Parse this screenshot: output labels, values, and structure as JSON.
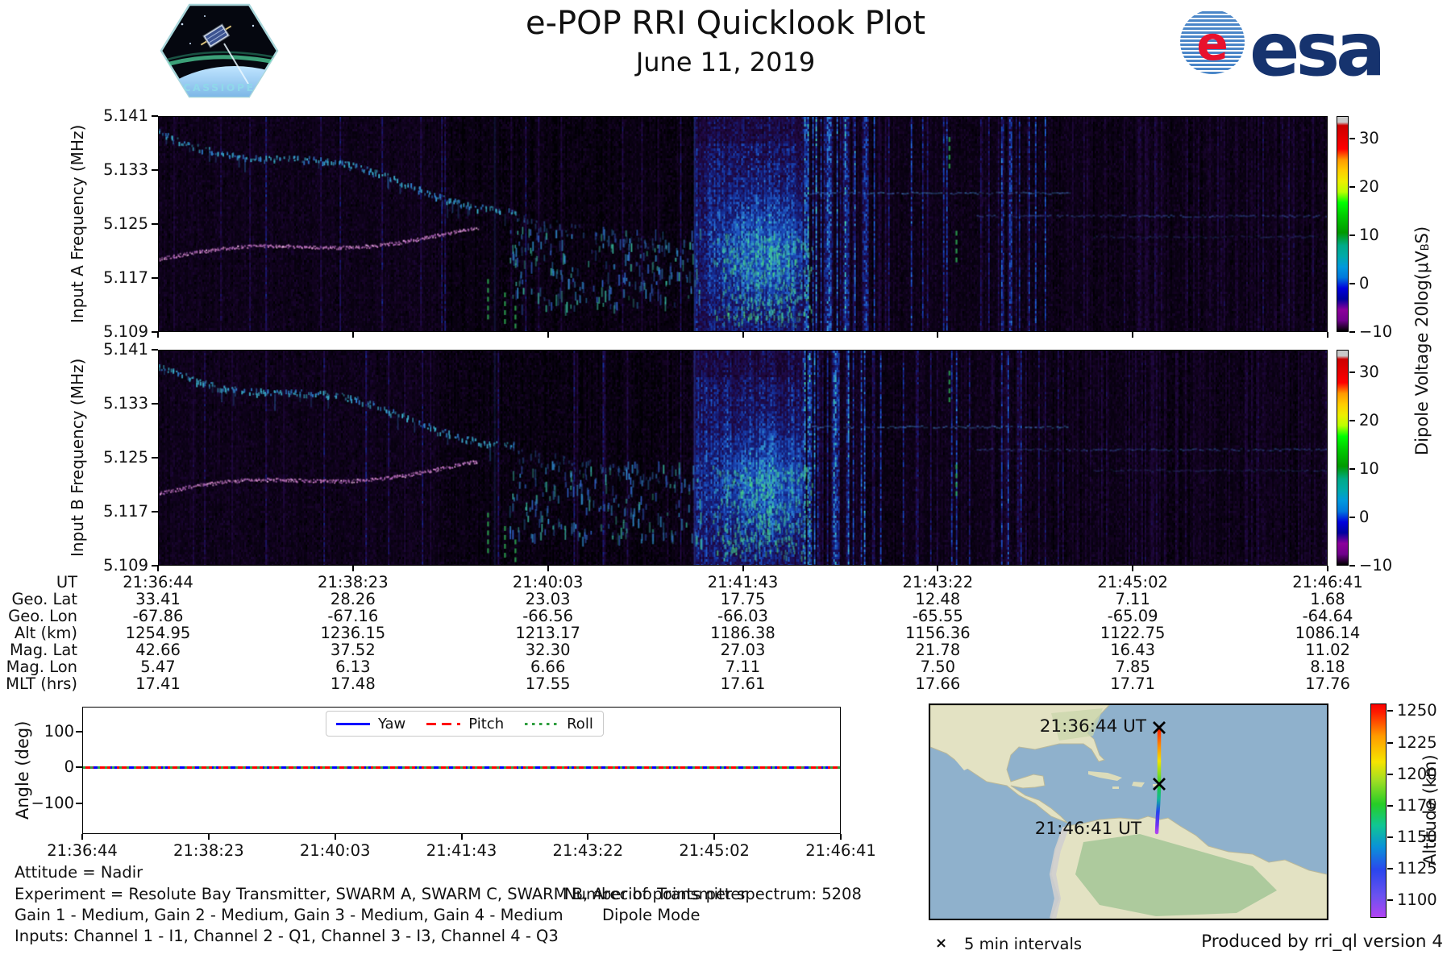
{
  "header": {
    "title": "e-POP RRI Quicklook Plot",
    "date": "June 11, 2019",
    "cassiope_label": "CASSIOPE",
    "esa_text": "esa"
  },
  "spectrograms": {
    "panels": [
      {
        "ylabel": "Input A Frequency (MHz)"
      },
      {
        "ylabel": "Input B Frequency (MHz)"
      }
    ],
    "ytick_labels": [
      "5.141",
      "5.133",
      "5.125",
      "5.117",
      "5.109"
    ],
    "colorbar": {
      "label_prefix": "Dipole Voltage 20log(μV",
      "label_sub": "B",
      "label_suffix": "S)",
      "tick_labels": [
        "30",
        "20",
        "10",
        "0",
        "−10"
      ],
      "colormap": "nipy_spectral"
    }
  },
  "angle_plot": {
    "ylabel": "Angle (deg)",
    "ytick_labels": [
      "100",
      "0",
      "−100"
    ],
    "xtick_labels": [
      "21:36:44",
      "21:38:23",
      "21:40:03",
      "21:41:43",
      "21:43:22",
      "21:45:02",
      "21:46:41"
    ]
  },
  "notes": {
    "attitude": "Attitude = Nadir",
    "experiment": "Experiment = Resolute Bay Transmitter, SWARM A, SWARM C, SWARM B, Arecibo Transmitter",
    "points": "Number of points per spectrum: 5208",
    "gain": "Gain 1 - Medium, Gain 2 - Medium, Gain 3 - Medium, Gain 4 - Medium",
    "mode": "Dipole Mode",
    "inputs": "Inputs: Channel 1 - I1, Channel 2 - Q1, Channel 3 - I3, Channel 4 - Q3"
  },
  "map_panel": {
    "start_label": "21:36:44 UT",
    "end_label": "21:46:41 UT",
    "interval_marker": "×",
    "interval_label": "5 min intervals",
    "colorbar": {
      "label": "Altitude (km)",
      "tick_labels": [
        "1250",
        "1225",
        "1200",
        "1175",
        "1150",
        "1125",
        "1100"
      ],
      "colormap": "rainbow"
    }
  },
  "footer": {
    "produced_by": "Produced by rri_ql version 4"
  },
  "colors": {
    "yaw": "#0000ff",
    "pitch": "#ff0000",
    "roll": "#2e9e3e",
    "esa_navy": "#16336e",
    "esa_red": "#e8112d",
    "ocean": "#8fb1cc",
    "land": "#e3e2c3",
    "forest": "#a3c596"
  },
  "chart_data": [
    {
      "type": "heatmap",
      "name": "rri-spectrogram-input-a",
      "ylabel": "Input A Frequency (MHz)",
      "ylim": [
        5.109,
        5.141
      ],
      "yticks": [
        5.141,
        5.133,
        5.125,
        5.117,
        5.109
      ],
      "xticks_ut": [
        "21:36:44",
        "21:38:23",
        "21:40:03",
        "21:41:43",
        "21:43:22",
        "21:45:02",
        "21:46:41"
      ],
      "colorbar": {
        "label": "Dipole Voltage 20log(μV_BS)",
        "ticks": [
          30,
          20,
          10,
          0,
          -10
        ],
        "range": [
          -10,
          34.7
        ],
        "colormap": "nipy_spectral"
      },
      "features": [
        "descending cyan scatter trace from ~5.139 MHz at 21:36:44 to ~5.127 MHz near 21:39",
        "narrow pink/magenta tone rising 5.120→5.124 MHz from 21:36:44 until ~21:39:30",
        "green dashed drop toward ~5.110 MHz near 21:39:40",
        "scattered blue emission 5.113–5.125 MHz between ~21:39:40 and ~21:41:00",
        "broadband blue wash with bright turquoise patch ~21:41:05–21:42:00",
        "strong vertical striping band ~21:42:00–21:42:30",
        "sparse vertical striations and faint horizontal tones near 5.130 and 5.126 MHz after 21:42:30"
      ]
    },
    {
      "type": "heatmap",
      "name": "rri-spectrogram-input-b",
      "ylabel": "Input B Frequency (MHz)",
      "ylim": [
        5.109,
        5.141
      ],
      "yticks": [
        5.141,
        5.133,
        5.125,
        5.117,
        5.109
      ],
      "xticks_ut": [
        "21:36:44",
        "21:38:23",
        "21:40:03",
        "21:41:43",
        "21:43:22",
        "21:45:02",
        "21:46:41"
      ],
      "colorbar": {
        "label": "Dipole Voltage 20log(μV_BS)",
        "ticks": [
          30,
          20,
          10,
          0,
          -10
        ],
        "range": [
          -10,
          34.7
        ],
        "colormap": "nipy_spectral"
      },
      "note": "nearly identical structure to Input A"
    },
    {
      "type": "table",
      "name": "ephemeris",
      "rows": [
        {
          "label": "UT",
          "values": [
            "21:36:44",
            "21:38:23",
            "21:40:03",
            "21:41:43",
            "21:43:22",
            "21:45:02",
            "21:46:41"
          ]
        },
        {
          "label": "Geo. Lat",
          "values": [
            "33.41",
            "28.26",
            "23.03",
            "17.75",
            "12.48",
            "7.11",
            "1.68"
          ]
        },
        {
          "label": "Geo. Lon",
          "values": [
            "-67.86",
            "-67.16",
            "-66.56",
            "-66.03",
            "-65.55",
            "-65.09",
            "-64.64"
          ]
        },
        {
          "label": "Alt (km)",
          "values": [
            "1254.95",
            "1236.15",
            "1213.17",
            "1186.38",
            "1156.36",
            "1122.75",
            "1086.14"
          ]
        },
        {
          "label": "Mag. Lat",
          "values": [
            "42.66",
            "37.52",
            "32.30",
            "27.03",
            "21.78",
            "16.43",
            "11.02"
          ]
        },
        {
          "label": "Mag. Lon",
          "values": [
            "5.47",
            "6.13",
            "6.66",
            "7.11",
            "7.50",
            "7.85",
            "8.18"
          ]
        },
        {
          "label": "MLT (hrs)",
          "values": [
            "17.41",
            "17.48",
            "17.55",
            "17.61",
            "17.66",
            "17.71",
            "17.76"
          ]
        }
      ]
    },
    {
      "type": "line",
      "name": "attitude-angles",
      "ylabel": "Angle (deg)",
      "yticks": [
        100,
        0,
        -100
      ],
      "ylim": [
        -185,
        160
      ],
      "x": [
        "21:36:44",
        "21:38:23",
        "21:40:03",
        "21:41:43",
        "21:43:22",
        "21:45:02",
        "21:46:41"
      ],
      "series": [
        {
          "name": "Yaw",
          "style": "solid",
          "color": "#0000ff",
          "values": [
            0,
            0,
            0,
            0,
            0,
            0,
            0
          ]
        },
        {
          "name": "Pitch",
          "style": "dashed",
          "color": "#ff0000",
          "values": [
            0,
            0,
            0,
            0,
            0,
            0,
            0
          ]
        },
        {
          "name": "Roll",
          "style": "dotted",
          "color": "#2e9e3e",
          "values": [
            0,
            0,
            0,
            0,
            0,
            0,
            0
          ]
        }
      ],
      "legend_position": "upper center"
    },
    {
      "type": "scatter",
      "name": "ground-track-map",
      "track_start": {
        "label": "21:36:44 UT",
        "geo_lat": 33.41,
        "geo_lon": -67.86,
        "alt_km": 1254.95
      },
      "track_end": {
        "label": "21:46:41 UT",
        "geo_lat": 1.68,
        "geo_lon": -64.64,
        "alt_km": 1086.14
      },
      "marker_note": "5 min intervals",
      "colorbar": {
        "label": "Altitude (km)",
        "ticks": [
          1250,
          1225,
          1200,
          1175,
          1150,
          1125,
          1100
        ],
        "range": [
          1086,
          1256
        ],
        "colormap": "rainbow"
      }
    }
  ]
}
